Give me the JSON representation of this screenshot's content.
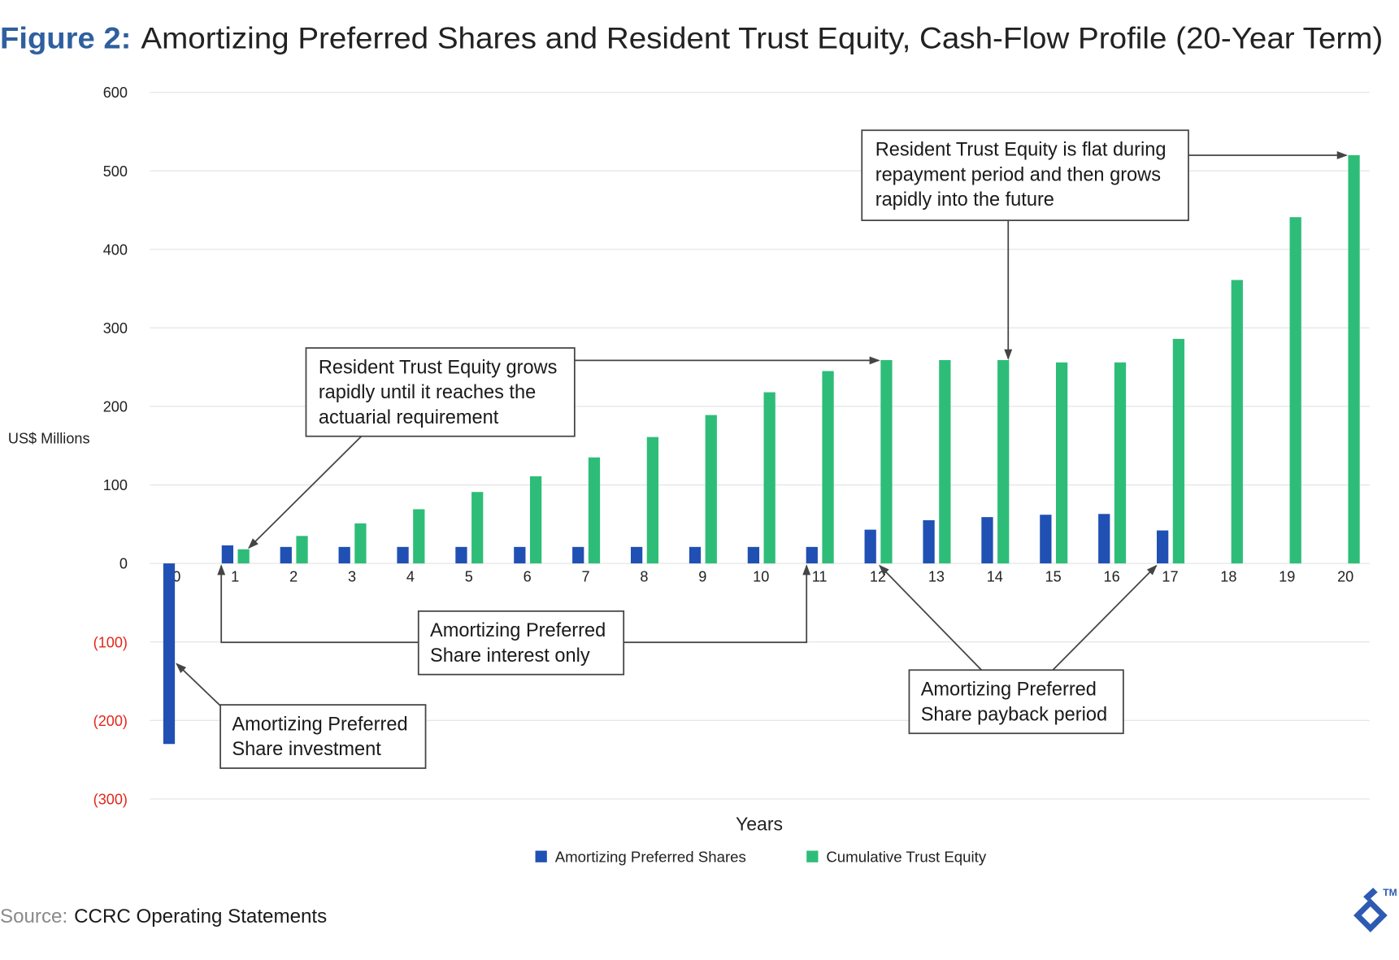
{
  "chart_data": {
    "type": "bar",
    "figure_label": "Figure 2:",
    "title": "Amortizing Preferred Shares and Resident Trust Equity, Cash-Flow Profile (20-Year Term)",
    "xlabel": "Years",
    "ylabel": "US$ Millions",
    "ylim": [
      -300,
      600
    ],
    "yticks": [
      600,
      500,
      400,
      300,
      200,
      100,
      0,
      -100,
      -200,
      -300
    ],
    "ytick_labels": [
      "600",
      "500",
      "400",
      "300",
      "200",
      "100",
      "0",
      "(100)",
      "(200)",
      "(300)"
    ],
    "categories": [
      "0",
      "1",
      "2",
      "3",
      "4",
      "5",
      "6",
      "7",
      "8",
      "9",
      "10",
      "11",
      "12",
      "13",
      "14",
      "15",
      "16",
      "17",
      "18",
      "19",
      "20"
    ],
    "series": [
      {
        "name": "Amortizing Preferred Shares",
        "color": "#2050b4",
        "values": [
          -230,
          23,
          21,
          21,
          21,
          21,
          21,
          21,
          21,
          21,
          21,
          21,
          43,
          55,
          59,
          62,
          63,
          42,
          0,
          0,
          0
        ]
      },
      {
        "name": "Cumulative Trust Equity",
        "color": "#2ebd78",
        "values": [
          0,
          18,
          35,
          51,
          69,
          91,
          111,
          135,
          161,
          189,
          218,
          245,
          259,
          259,
          259,
          256,
          256,
          286,
          361,
          441,
          520
        ]
      }
    ],
    "grid": true,
    "legend": "bottom-center",
    "annotations": [
      {
        "lines": [
          "Resident Trust Equity is flat during",
          "repayment period and then grows",
          "rapidly into the future"
        ]
      },
      {
        "lines": [
          "Resident Trust Equity grows",
          "rapidly until it reaches the",
          "actuarial requirement"
        ]
      },
      {
        "lines": [
          "Amortizing Preferred",
          "Share interest only"
        ]
      },
      {
        "lines": [
          "Amortizing Preferred",
          "Share investment"
        ]
      },
      {
        "lines": [
          "Amortizing Preferred",
          "Share payback period"
        ]
      }
    ]
  },
  "source": {
    "label": "Source:",
    "text": "CCRC Operating Statements"
  },
  "logo": {
    "icon": "brand-logo-icon",
    "trademark": "TM"
  },
  "colors": {
    "figure_label": "#2f5f9f",
    "negative_tick": "#e3271b",
    "source_label": "#8a8a8a",
    "logo": "#2d5bb3"
  }
}
